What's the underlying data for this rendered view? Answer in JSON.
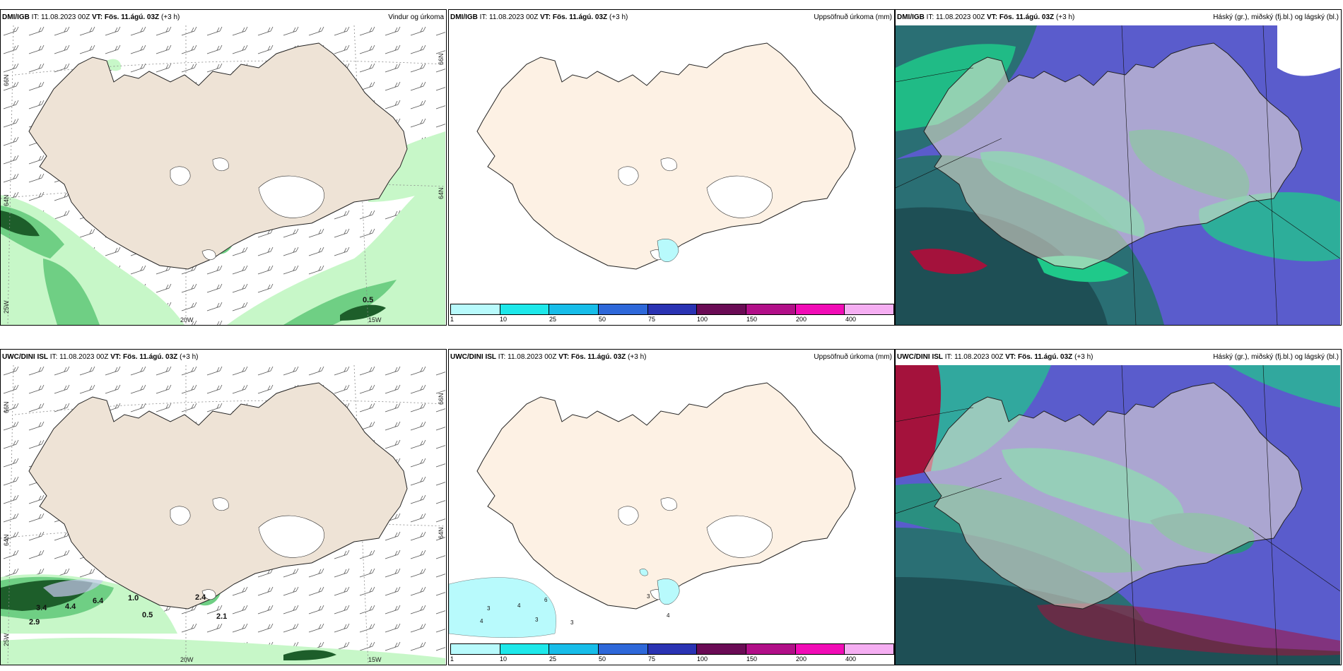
{
  "panels": [
    {
      "id": "p1",
      "model": "DMI/IGB",
      "it_label": "IT:",
      "it_value": "11.08.2023 00Z",
      "vt_label": "VT:",
      "vt_value": "Fös. 11.ágú. 03Z",
      "lead": "(+3 h)",
      "product": "Vindur og úrkoma",
      "grid_labels": {
        "lat_top": "66N",
        "lat_right_top": "66N",
        "lat_mid": "64N",
        "lat_right_mid": "64N",
        "lon_left": "25W",
        "lon_mid": "20W",
        "lon_right": "15W"
      },
      "values": [
        {
          "text": "0.5"
        }
      ]
    },
    {
      "id": "p2",
      "model": "DMI/IGB",
      "it_label": "IT:",
      "it_value": "11.08.2023 00Z",
      "vt_label": "VT:",
      "vt_value": "Fös. 11.ágú. 03Z",
      "lead": "(+3 h)",
      "product": "Uppsöfnuð úrkoma (mm)",
      "colorbar": {
        "colors": [
          "#b8fafc",
          "#1ee8ea",
          "#17bde9",
          "#2e68d9",
          "#2a33b3",
          "#6a0b55",
          "#b10f88",
          "#f10cb6",
          "#f5aef2"
        ],
        "ticks": [
          "1",
          "10",
          "25",
          "50",
          "75",
          "100",
          "150",
          "200",
          "400"
        ]
      }
    },
    {
      "id": "p3",
      "model": "DMI/IGB",
      "it_label": "IT:",
      "it_value": "11.08.2023 00Z",
      "vt_label": "VT:",
      "vt_value": "Fös. 11.ágú. 03Z",
      "lead": "(+3 h)",
      "product": "Háský (gr.), miðský (fj.bl.) og lágský (bl.)"
    },
    {
      "id": "p4",
      "model": "UWC/DINI ISL",
      "it_label": "IT:",
      "it_value": "11.08.2023 00Z",
      "vt_label": "VT:",
      "vt_value": "Fös. 11.ágú. 03Z",
      "lead": "(+3 h)",
      "product": "",
      "grid_labels": {
        "lat_top": "66N",
        "lat_right_top": "66N",
        "lat_mid": "64N",
        "lat_right_mid": "64N",
        "lon_left": "25W",
        "lon_mid": "20W",
        "lon_right": "15W"
      },
      "values": [
        {
          "text": "3.4"
        },
        {
          "text": "4.4"
        },
        {
          "text": "6.4"
        },
        {
          "text": "1.0"
        },
        {
          "text": "0.5"
        },
        {
          "text": "2.9"
        },
        {
          "text": "2.4"
        },
        {
          "text": "2.1"
        }
      ]
    },
    {
      "id": "p5",
      "model": "UWC/DINI ISL",
      "it_label": "IT:",
      "it_value": "11.08.2023 00Z",
      "vt_label": "VT:",
      "vt_value": "Fös. 11.ágú. 03Z",
      "lead": "(+3 h)",
      "product": "Uppsöfnuð úrkoma (mm)",
      "colorbar": {
        "colors": [
          "#b8fafc",
          "#1ee8ea",
          "#17bde9",
          "#2e68d9",
          "#2a33b3",
          "#6a0b55",
          "#b10f88",
          "#f10cb6",
          "#f5aef2"
        ],
        "ticks": [
          "1",
          "10",
          "25",
          "50",
          "75",
          "100",
          "150",
          "200",
          "400"
        ]
      },
      "values": [
        {
          "text": "3"
        },
        {
          "text": "4"
        },
        {
          "text": "6"
        },
        {
          "text": "4"
        },
        {
          "text": "3"
        },
        {
          "text": "3"
        },
        {
          "text": "3"
        },
        {
          "text": "4"
        }
      ]
    },
    {
      "id": "p6",
      "model": "UWC/DINI ISL",
      "it_label": "IT:",
      "it_value": "11.08.2023 00Z",
      "vt_label": "VT:",
      "vt_value": "Fös. 11.ágú. 03Z",
      "lead": "(+3 h)",
      "product": "Háský (gr.), miðský (fj.bl.) og lágský (bl.)"
    }
  ],
  "colors": {
    "land_wind": "#eee3d6",
    "land_precip": "#fdf1e4",
    "precip_light": "#c7f7c8",
    "precip_mid": "#6fcf84",
    "precip_dark": "#1d5e2a",
    "cloud_high": "#1fc98a",
    "cloud_mid": "#5a5ccc",
    "cloud_low": "#2a6f74",
    "cloud_red": "#a4123c"
  }
}
